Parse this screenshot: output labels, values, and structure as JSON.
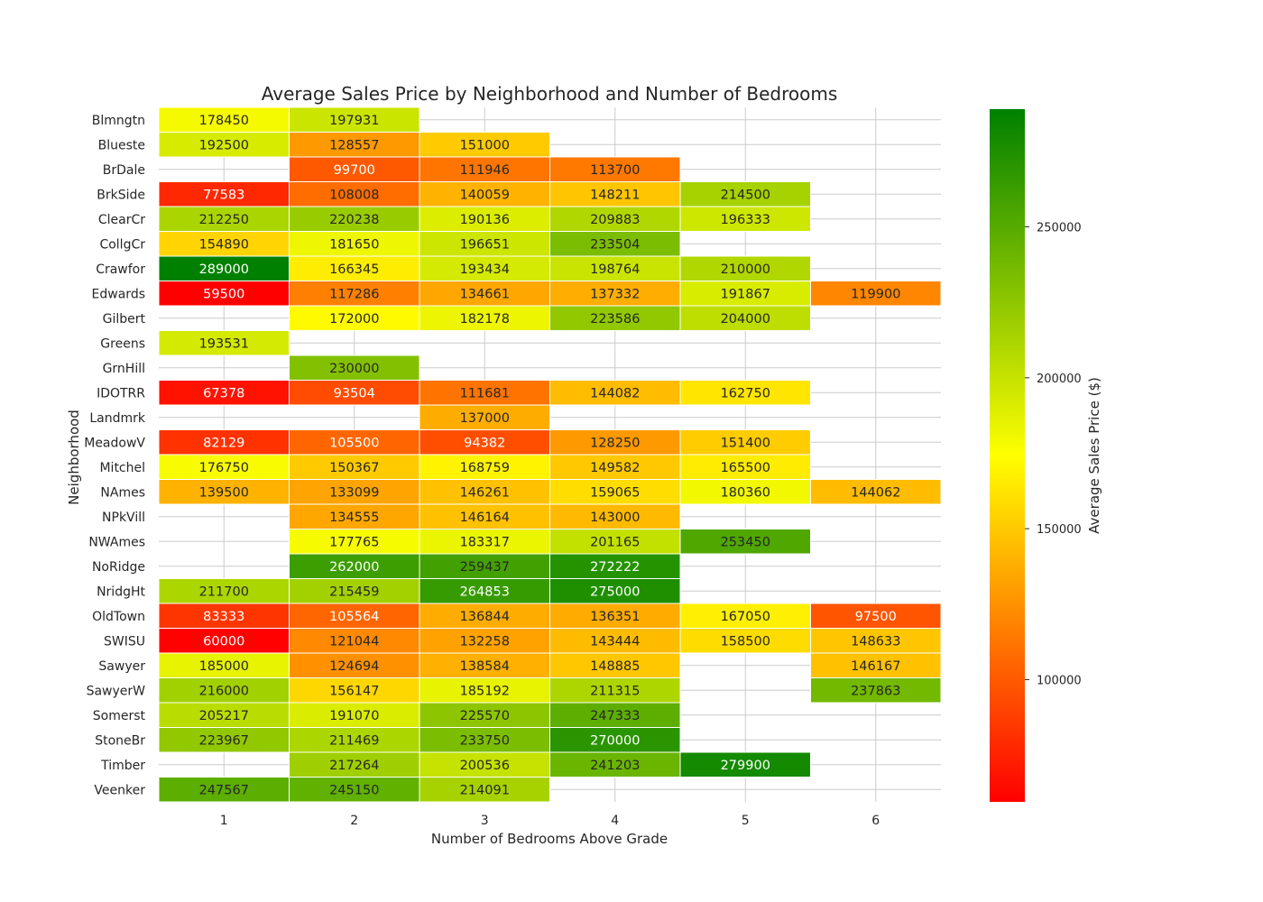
{
  "chart_data": {
    "type": "heatmap",
    "title": "Average Sales Price by Neighborhood and Number of Bedrooms",
    "xlabel": "Number of Bedrooms Above Grade",
    "ylabel": "Neighborhood",
    "x_categories": [
      "1",
      "2",
      "3",
      "4",
      "5",
      "6"
    ],
    "y_categories": [
      "Blmngtn",
      "Blueste",
      "BrDale",
      "BrkSide",
      "ClearCr",
      "CollgCr",
      "Crawfor",
      "Edwards",
      "Gilbert",
      "Greens",
      "GrnHill",
      "IDOTRR",
      "Landmrk",
      "MeadowV",
      "Mitchel",
      "NAmes",
      "NPkVill",
      "NWAmes",
      "NoRidge",
      "NridgHt",
      "OldTown",
      "SWISU",
      "Sawyer",
      "SawyerW",
      "Somerst",
      "StoneBr",
      "Timber",
      "Veenker"
    ],
    "values": [
      [
        178450,
        197931,
        null,
        null,
        null,
        null
      ],
      [
        192500,
        128557,
        151000,
        null,
        null,
        null
      ],
      [
        null,
        99700,
        111946,
        113700,
        null,
        null
      ],
      [
        77583,
        108008,
        140059,
        148211,
        214500,
        null
      ],
      [
        212250,
        220238,
        190136,
        209883,
        196333,
        null
      ],
      [
        154890,
        181650,
        196651,
        233504,
        null,
        null
      ],
      [
        289000,
        166345,
        193434,
        198764,
        210000,
        null
      ],
      [
        59500,
        117286,
        134661,
        137332,
        191867,
        119900
      ],
      [
        null,
        172000,
        182178,
        223586,
        204000,
        null
      ],
      [
        193531,
        null,
        null,
        null,
        null,
        null
      ],
      [
        null,
        230000,
        null,
        null,
        null,
        null
      ],
      [
        67378,
        93504,
        111681,
        144082,
        162750,
        null
      ],
      [
        null,
        null,
        137000,
        null,
        null,
        null
      ],
      [
        82129,
        105500,
        94382,
        128250,
        151400,
        null
      ],
      [
        176750,
        150367,
        168759,
        149582,
        165500,
        null
      ],
      [
        139500,
        133099,
        146261,
        159065,
        180360,
        144062
      ],
      [
        null,
        134555,
        146164,
        143000,
        null,
        null
      ],
      [
        null,
        177765,
        183317,
        201165,
        253450,
        null
      ],
      [
        null,
        262000,
        259437,
        272222,
        null,
        null
      ],
      [
        211700,
        215459,
        264853,
        275000,
        null,
        null
      ],
      [
        83333,
        105564,
        136844,
        136351,
        167050,
        97500
      ],
      [
        60000,
        121044,
        132258,
        143444,
        158500,
        148633
      ],
      [
        185000,
        124694,
        138584,
        148885,
        null,
        146167
      ],
      [
        216000,
        156147,
        185192,
        211315,
        null,
        237863
      ],
      [
        205217,
        191070,
        225570,
        247333,
        null,
        null
      ],
      [
        223967,
        211469,
        233750,
        270000,
        null,
        null
      ],
      [
        null,
        217264,
        200536,
        241203,
        279900,
        null
      ],
      [
        247567,
        245150,
        214091,
        null,
        null,
        null
      ]
    ],
    "colorbar": {
      "label": "Average Sales Price ($)",
      "vmin": 59500,
      "vmax": 289000,
      "ticks": [
        100000,
        150000,
        200000,
        250000
      ],
      "colors": [
        "#ff0000",
        "#ffff00",
        "#008000"
      ]
    },
    "grid": true,
    "legend": "colorbar-right"
  }
}
